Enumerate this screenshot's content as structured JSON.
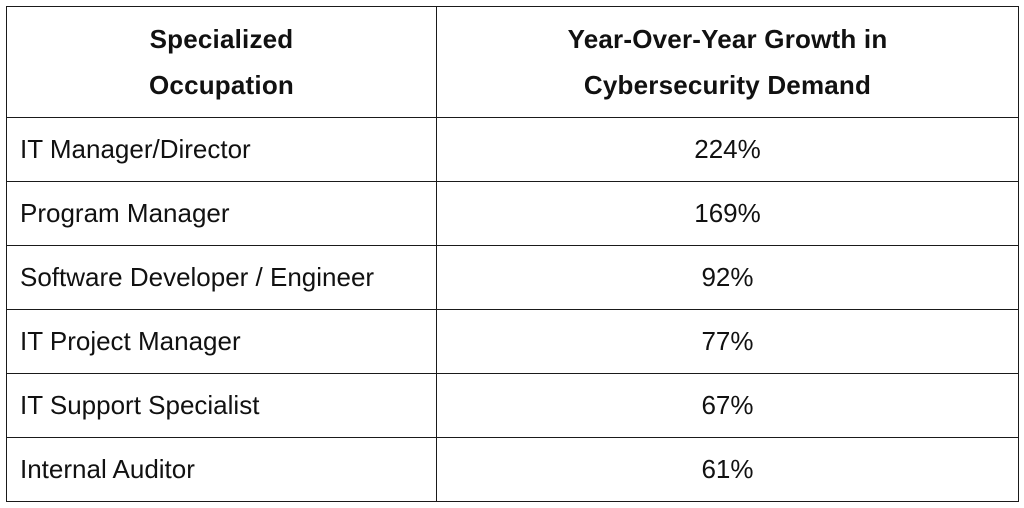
{
  "table": {
    "headers": [
      [
        "Specialized",
        "Occupation"
      ],
      [
        "Year-Over-Year Growth in",
        "Cybersecurity Demand"
      ]
    ],
    "rows": [
      {
        "occupation": "IT Manager/Director",
        "growth": "224%"
      },
      {
        "occupation": "Program Manager",
        "growth": "169%"
      },
      {
        "occupation": "Software Developer / Engineer",
        "growth": "92%"
      },
      {
        "occupation": "IT Project Manager",
        "growth": "77%"
      },
      {
        "occupation": "IT Support Specialist",
        "growth": "67%"
      },
      {
        "occupation": "Internal Auditor",
        "growth": "61%"
      }
    ]
  }
}
